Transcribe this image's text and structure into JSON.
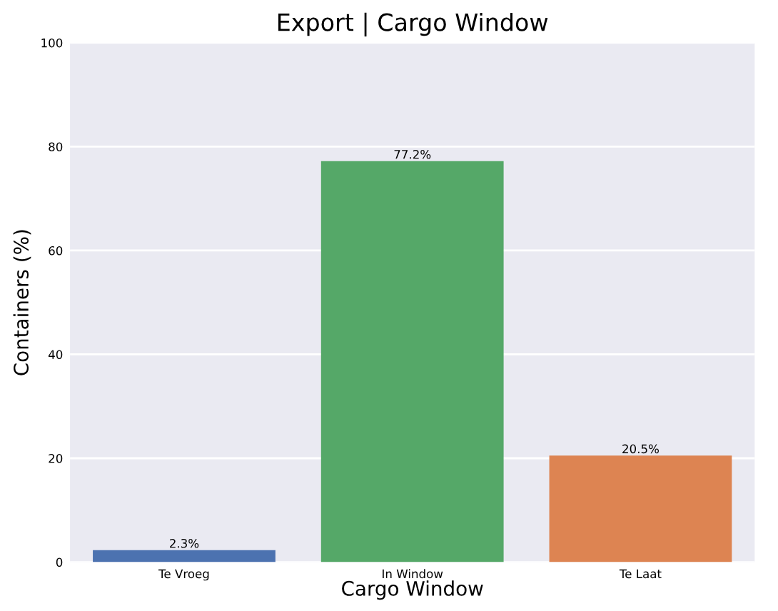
{
  "chart_data": {
    "type": "bar",
    "title": "Export | Cargo Window",
    "xlabel": "Cargo Window",
    "ylabel": "Containers (%)",
    "categories": [
      "Te Vroeg",
      "In Window",
      "Te Laat"
    ],
    "values": [
      2.3,
      77.2,
      20.5
    ],
    "colors": [
      "#4c72b0",
      "#55a868",
      "#dd8452"
    ],
    "value_labels": [
      "2.3%",
      "77.2%",
      "20.5%"
    ],
    "ylim": [
      0,
      100
    ],
    "yticks": [
      0,
      20,
      40,
      60,
      80,
      100
    ],
    "grid": "y"
  }
}
